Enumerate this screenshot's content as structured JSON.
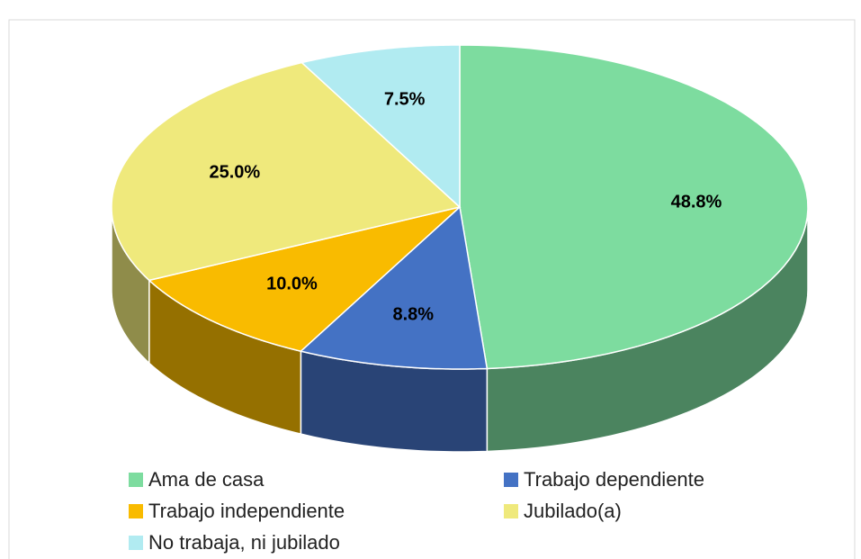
{
  "chart_data": {
    "type": "pie",
    "categories": [
      "Ama de casa",
      "Trabajo dependiente",
      "Trabajo independiente",
      "Jubilado(a)",
      "No trabaja, ni jubilado"
    ],
    "values": [
      48.8,
      8.8,
      10.0,
      25.0,
      7.5
    ],
    "value_labels": [
      "48.8%",
      "8.8%",
      "10.0%",
      "25.0%",
      "7.5%"
    ],
    "colors": [
      "#7ddc9f",
      "#4472c4",
      "#f9bb00",
      "#efe97c",
      "#b1ebf1"
    ],
    "legend": "bottom"
  }
}
